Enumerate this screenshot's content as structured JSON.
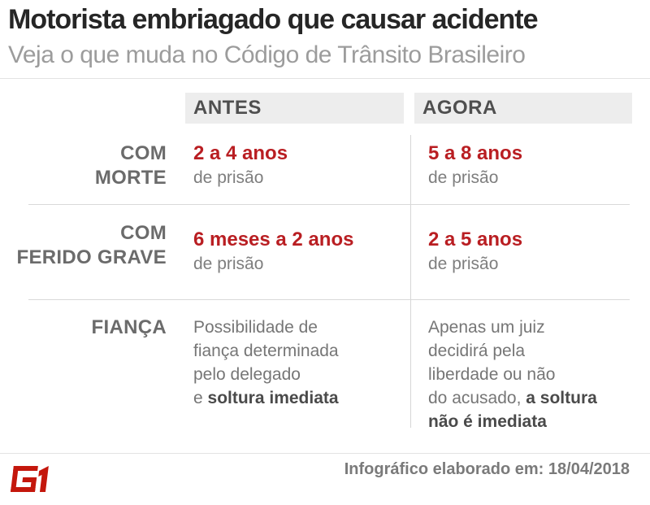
{
  "header": {
    "title": "Motorista embriagado que causar acidente",
    "subtitle": "Veja o que muda no Código de Trânsito Brasileiro"
  },
  "table": {
    "columns": {
      "antes": "ANTES",
      "agora": "AGORA"
    },
    "rows": [
      {
        "label": "COM\nMORTE",
        "antes_value": "2 a 4 anos",
        "antes_sub": "de prisão",
        "agora_value": "5 a 8 anos",
        "agora_sub": "de prisão"
      },
      {
        "label": "COM\nFERIDO GRAVE",
        "antes_value": "6 meses a 2 anos",
        "antes_sub": "de prisão",
        "agora_value": "2 a 5 anos",
        "agora_sub": "de prisão"
      },
      {
        "label": "FIANÇA",
        "antes_rich": [
          {
            "t": "Possibilidade de\nfiança determinada\npelo delegado\ne ",
            "b": false
          },
          {
            "t": "soltura imediata",
            "b": true
          }
        ],
        "agora_rich": [
          {
            "t": "Apenas um juiz\ndecidirá pela\nliberdade ou não\ndo acusado, ",
            "b": false
          },
          {
            "t": "a soltura\nnão é imediata",
            "b": true
          }
        ]
      }
    ]
  },
  "footer": {
    "logo": "G1",
    "credit": "Infográfico elaborado em: 18/04/2018"
  },
  "colors": {
    "accent_red": "#b91e22",
    "logo_red": "#c4170c",
    "header_box_bg": "#ededed",
    "label_gray": "#6b6b6b",
    "text_gray": "#767676",
    "title_black": "#262626"
  },
  "chart_data": {
    "type": "table",
    "title": "Motorista embriagado que causar acidente",
    "subtitle": "Veja o que muda no Código de Trânsito Brasileiro",
    "columns": [
      "",
      "ANTES",
      "AGORA"
    ],
    "rows": [
      [
        "COM MORTE",
        "2 a 4 anos de prisão",
        "5 a 8 anos de prisão"
      ],
      [
        "COM FERIDO GRAVE",
        "6 meses a 2 anos de prisão",
        "2 a 5 anos de prisão"
      ],
      [
        "FIANÇA",
        "Possibilidade de fiança determinada pelo delegado e soltura imediata",
        "Apenas um juiz decidirá pela liberdade ou não do acusado, a soltura não é imediata"
      ]
    ],
    "footnote": "Infográfico elaborado em: 18/04/2018",
    "source": "G1"
  }
}
